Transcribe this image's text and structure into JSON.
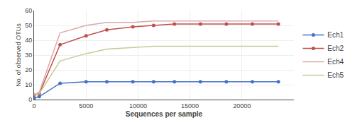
{
  "chart_data": {
    "type": "line",
    "x": [
      1,
      500,
      2500,
      5000,
      7000,
      9500,
      11500,
      13500,
      16000,
      18500,
      21000,
      23500
    ],
    "series": [
      {
        "name": "Ech1",
        "color": "#4472C4",
        "marker": "circle",
        "values": [
          1,
          2,
          11,
          12,
          12,
          12,
          12,
          12,
          12,
          12,
          12,
          12
        ]
      },
      {
        "name": "Ech2",
        "color": "#C0504D",
        "marker": "circle",
        "values": [
          3,
          4,
          37,
          43,
          47,
          49,
          50,
          51,
          51,
          51,
          51,
          51
        ]
      },
      {
        "name": "Ech4",
        "color": "#DBA9A9",
        "marker": "none",
        "values": [
          3,
          5,
          45,
          50,
          52,
          52,
          53,
          53,
          53,
          53,
          53,
          53
        ]
      },
      {
        "name": "Ech5",
        "color": "#C8C89A",
        "marker": "none",
        "values": [
          3,
          4,
          26,
          31,
          34,
          35,
          36,
          36,
          36,
          36,
          36,
          36
        ]
      }
    ],
    "xlim": [
      0,
      25000
    ],
    "ylim": [
      0,
      60
    ],
    "xticks": [
      0,
      5000,
      10000,
      15000,
      20000
    ],
    "yticks": [
      0,
      10,
      20,
      30,
      40,
      50,
      60
    ],
    "xlabel": "Sequences per sample",
    "ylabel": "No. of observed OTUs",
    "legend": "right",
    "grid": true
  }
}
